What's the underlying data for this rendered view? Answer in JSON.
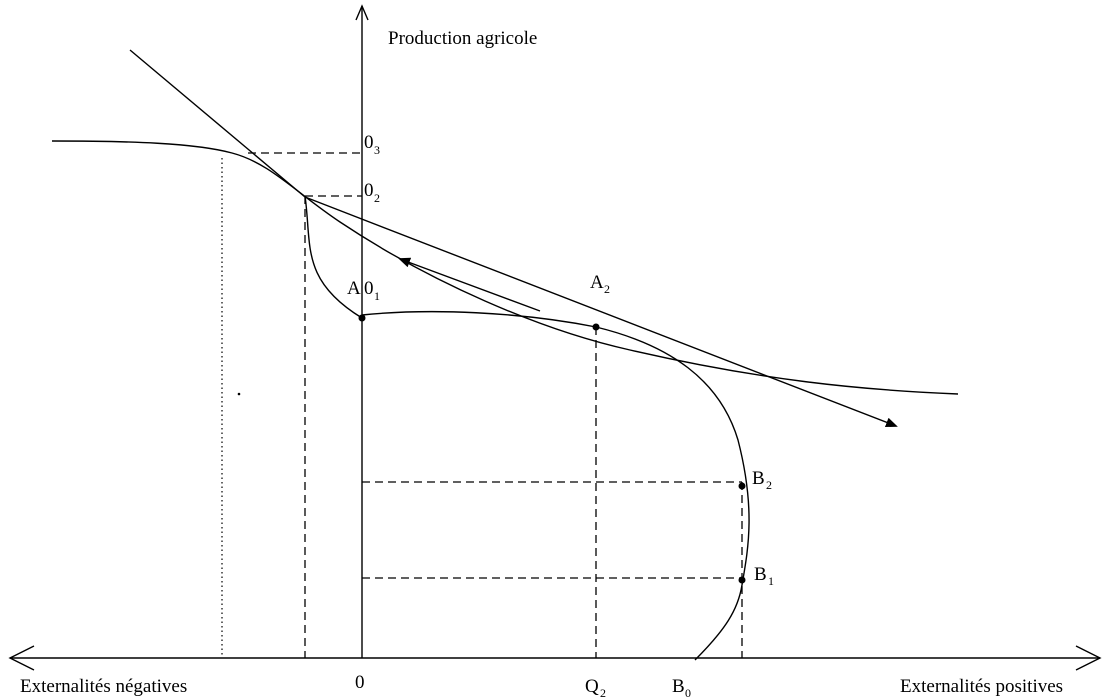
{
  "labels": {
    "y_axis": "Production agricole",
    "x_negative": "Externalités négatives",
    "x_positive": "Externalités positives",
    "origin": "0",
    "q2": "Q",
    "q2_sub": "2",
    "b0": "B",
    "b0_sub": "0",
    "o1": "0",
    "o1_sub": "1",
    "o2": "0",
    "o2_sub": "2",
    "o3": "0",
    "o3_sub": "3",
    "a": "A",
    "a2": "A",
    "a2_sub": "2",
    "b1": "B",
    "b1_sub": "1",
    "b2": "B",
    "b2_sub": "2"
  }
}
